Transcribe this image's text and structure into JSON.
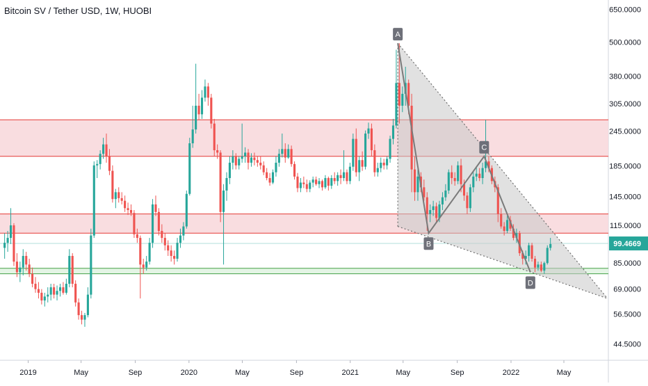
{
  "header": {
    "title": "Bitcoin SV / Tether USD, 1W, HUOBI"
  },
  "colors": {
    "up": "#26a69a",
    "down": "#ef5350",
    "resistance_fill": "#f8d7da",
    "resistance_line": "#e53935",
    "support_fill": "#dff3e1",
    "support_line": "#43a047",
    "pattern_fill": "#c8c8c8",
    "pattern_line": "#6e6e6e",
    "price_tag": "#26a69a",
    "label_bg": "#6e7079"
  },
  "chart_data": {
    "type": "candlestick",
    "scale": "log",
    "title": "Bitcoin SV / Tether USD, 1W, HUOBI",
    "y_ticks": [
      "650.0000",
      "500.0000",
      "380.0000",
      "305.0000",
      "245.0000",
      "185.0000",
      "145.0000",
      "115.0000",
      "85.0000",
      "69.0000",
      "56.5000",
      "44.5000"
    ],
    "y_tick_values": [
      650,
      500,
      380,
      305,
      245,
      185,
      145,
      115,
      85,
      69,
      56.5,
      44.5
    ],
    "ylim": [
      39,
      700
    ],
    "x_ticks": [
      {
        "label": "2019",
        "date": "2019-01-01"
      },
      {
        "label": "May",
        "date": "2019-05-01"
      },
      {
        "label": "Sep",
        "date": "2019-09-01"
      },
      {
        "label": "2020",
        "date": "2020-01-01"
      },
      {
        "label": "May",
        "date": "2020-05-01"
      },
      {
        "label": "Sep",
        "date": "2020-09-01"
      },
      {
        "label": "2021",
        "date": "2021-01-01"
      },
      {
        "label": "May",
        "date": "2021-05-01"
      },
      {
        "label": "Sep",
        "date": "2021-09-01"
      },
      {
        "label": "2022",
        "date": "2022-01-01"
      },
      {
        "label": "May",
        "date": "2022-05-01"
      }
    ],
    "xlim": [
      "2018-10-29",
      "2022-08-10"
    ],
    "current_price": {
      "value": 99.4669,
      "label": "99.4669"
    },
    "zones": [
      {
        "kind": "resistance",
        "low": 200,
        "high": 268
      },
      {
        "kind": "resistance",
        "low": 108,
        "high": 126
      },
      {
        "kind": "support",
        "low": 78,
        "high": 81.5
      }
    ],
    "pattern": {
      "points": [
        {
          "label": "A",
          "date": "2021-04-19",
          "price": 495
        },
        {
          "label": "B",
          "date": "2021-06-28",
          "price": 108
        },
        {
          "label": "C",
          "date": "2021-11-01",
          "price": 200
        },
        {
          "label": "D",
          "date": "2022-02-14",
          "price": 79
        }
      ],
      "wedge_upper_end": {
        "date": "2022-08-08",
        "price": 64
      },
      "wedge_lower_start": {
        "date": "2021-04-19",
        "price": 114
      }
    },
    "candles": [
      [
        "2018-11-05",
        96,
        108,
        88,
        100
      ],
      [
        "2018-11-12",
        100,
        110,
        93,
        104
      ],
      [
        "2018-11-19",
        104,
        132,
        99,
        115
      ],
      [
        "2018-11-26",
        115,
        117,
        83,
        86
      ],
      [
        "2018-12-03",
        86,
        92,
        76,
        79
      ],
      [
        "2018-12-10",
        79,
        86,
        73,
        82
      ],
      [
        "2018-12-17",
        82,
        95,
        77,
        90
      ],
      [
        "2018-12-24",
        90,
        93,
        80,
        84
      ],
      [
        "2018-12-31",
        84,
        88,
        76,
        78
      ],
      [
        "2019-01-07",
        78,
        82,
        70,
        72
      ],
      [
        "2019-01-14",
        72,
        76,
        67,
        69
      ],
      [
        "2019-01-21",
        69,
        73,
        64,
        67
      ],
      [
        "2019-01-28",
        67,
        69,
        61,
        63
      ],
      [
        "2019-02-04",
        63,
        67,
        60,
        65
      ],
      [
        "2019-02-11",
        65,
        70,
        62,
        66
      ],
      [
        "2019-02-18",
        66,
        72,
        63,
        70
      ],
      [
        "2019-02-25",
        70,
        72,
        64,
        66
      ],
      [
        "2019-03-04",
        66,
        71,
        63,
        68
      ],
      [
        "2019-03-11",
        68,
        72,
        65,
        70
      ],
      [
        "2019-03-18",
        70,
        73,
        66,
        67
      ],
      [
        "2019-03-25",
        67,
        75,
        66,
        72
      ],
      [
        "2019-04-01",
        72,
        95,
        70,
        90
      ],
      [
        "2019-04-08",
        90,
        92,
        70,
        72
      ],
      [
        "2019-04-15",
        72,
        74,
        60,
        62
      ],
      [
        "2019-04-22",
        62,
        64,
        54,
        56
      ],
      [
        "2019-04-29",
        56,
        58,
        52,
        54
      ],
      [
        "2019-05-06",
        54,
        57,
        51,
        56
      ],
      [
        "2019-05-13",
        56,
        70,
        55,
        66
      ],
      [
        "2019-05-20",
        66,
        112,
        64,
        106
      ],
      [
        "2019-05-27",
        106,
        192,
        104,
        186
      ],
      [
        "2019-06-03",
        186,
        194,
        168,
        188
      ],
      [
        "2019-06-10",
        188,
        210,
        180,
        204
      ],
      [
        "2019-06-17",
        204,
        232,
        196,
        220
      ],
      [
        "2019-06-24",
        220,
        240,
        190,
        200
      ],
      [
        "2019-07-01",
        200,
        212,
        172,
        178
      ],
      [
        "2019-07-08",
        178,
        186,
        138,
        142
      ],
      [
        "2019-07-15",
        142,
        154,
        132,
        150
      ],
      [
        "2019-07-22",
        150,
        156,
        138,
        143
      ],
      [
        "2019-07-29",
        143,
        150,
        136,
        140
      ],
      [
        "2019-08-05",
        140,
        146,
        128,
        132
      ],
      [
        "2019-08-12",
        132,
        138,
        125,
        130
      ],
      [
        "2019-08-19",
        130,
        136,
        124,
        127
      ],
      [
        "2019-08-26",
        127,
        130,
        104,
        107
      ],
      [
        "2019-09-02",
        107,
        112,
        100,
        104
      ],
      [
        "2019-09-09",
        104,
        106,
        64,
        84
      ],
      [
        "2019-09-16",
        84,
        88,
        78,
        82
      ],
      [
        "2019-09-23",
        82,
        90,
        80,
        86
      ],
      [
        "2019-09-30",
        86,
        104,
        84,
        100
      ],
      [
        "2019-10-07",
        100,
        142,
        96,
        136
      ],
      [
        "2019-10-14",
        136,
        146,
        124,
        128
      ],
      [
        "2019-10-21",
        128,
        132,
        106,
        110
      ],
      [
        "2019-10-28",
        110,
        116,
        100,
        104
      ],
      [
        "2019-11-04",
        104,
        108,
        94,
        98
      ],
      [
        "2019-11-11",
        98,
        102,
        90,
        94
      ],
      [
        "2019-11-18",
        94,
        98,
        86,
        90
      ],
      [
        "2019-11-25",
        90,
        94,
        84,
        88
      ],
      [
        "2019-12-02",
        88,
        104,
        86,
        100
      ],
      [
        "2019-12-09",
        100,
        112,
        96,
        106
      ],
      [
        "2019-12-16",
        106,
        118,
        102,
        114
      ],
      [
        "2019-12-23",
        114,
        152,
        112,
        148
      ],
      [
        "2019-12-30",
        148,
        232,
        146,
        222
      ],
      [
        "2020-01-06",
        222,
        300,
        214,
        248
      ],
      [
        "2020-01-13",
        248,
        420,
        240,
        300
      ],
      [
        "2020-01-20",
        300,
        330,
        268,
        280
      ],
      [
        "2020-01-27",
        280,
        340,
        270,
        320
      ],
      [
        "2020-02-03",
        320,
        370,
        310,
        350
      ],
      [
        "2020-02-10",
        350,
        360,
        300,
        320
      ],
      [
        "2020-02-17",
        320,
        330,
        250,
        260
      ],
      [
        "2020-02-24",
        260,
        270,
        200,
        210
      ],
      [
        "2020-03-02",
        210,
        220,
        196,
        206
      ],
      [
        "2020-03-09",
        206,
        210,
        118,
        128
      ],
      [
        "2020-03-16",
        128,
        160,
        84,
        152
      ],
      [
        "2020-03-23",
        152,
        176,
        140,
        168
      ],
      [
        "2020-03-30",
        168,
        200,
        160,
        190
      ],
      [
        "2020-04-06",
        190,
        210,
        180,
        200
      ],
      [
        "2020-04-13",
        200,
        205,
        180,
        186
      ],
      [
        "2020-04-20",
        186,
        200,
        180,
        196
      ],
      [
        "2020-04-27",
        196,
        260,
        190,
        200
      ],
      [
        "2020-05-04",
        200,
        215,
        190,
        206
      ],
      [
        "2020-05-11",
        206,
        212,
        180,
        190
      ],
      [
        "2020-05-18",
        190,
        205,
        184,
        198
      ],
      [
        "2020-05-25",
        198,
        206,
        186,
        194
      ],
      [
        "2020-06-01",
        194,
        200,
        184,
        190
      ],
      [
        "2020-06-08",
        190,
        200,
        180,
        186
      ],
      [
        "2020-06-15",
        186,
        192,
        172,
        176
      ],
      [
        "2020-06-22",
        176,
        182,
        165,
        168
      ],
      [
        "2020-06-29",
        168,
        175,
        158,
        162
      ],
      [
        "2020-07-06",
        162,
        180,
        160,
        176
      ],
      [
        "2020-07-13",
        176,
        200,
        170,
        190
      ],
      [
        "2020-07-20",
        190,
        212,
        184,
        204
      ],
      [
        "2020-07-27",
        204,
        240,
        198,
        212
      ],
      [
        "2020-08-03",
        212,
        222,
        190,
        198
      ],
      [
        "2020-08-10",
        198,
        220,
        196,
        212
      ],
      [
        "2020-08-17",
        212,
        218,
        184,
        188
      ],
      [
        "2020-08-24",
        188,
        192,
        166,
        170
      ],
      [
        "2020-08-31",
        170,
        175,
        150,
        155
      ],
      [
        "2020-09-07",
        155,
        168,
        150,
        162
      ],
      [
        "2020-09-14",
        162,
        170,
        155,
        160
      ],
      [
        "2020-09-21",
        160,
        166,
        150,
        154
      ],
      [
        "2020-09-28",
        154,
        165,
        150,
        162
      ],
      [
        "2020-10-05",
        162,
        170,
        156,
        166
      ],
      [
        "2020-10-12",
        166,
        170,
        158,
        160
      ],
      [
        "2020-10-19",
        160,
        168,
        155,
        164
      ],
      [
        "2020-10-26",
        164,
        166,
        152,
        156
      ],
      [
        "2020-11-02",
        156,
        172,
        154,
        168
      ],
      [
        "2020-11-09",
        168,
        170,
        152,
        158
      ],
      [
        "2020-11-16",
        158,
        172,
        154,
        168
      ],
      [
        "2020-11-23",
        168,
        176,
        160,
        164
      ],
      [
        "2020-11-30",
        164,
        176,
        158,
        172
      ],
      [
        "2020-12-07",
        172,
        180,
        160,
        168
      ],
      [
        "2020-12-14",
        168,
        210,
        164,
        176
      ],
      [
        "2020-12-21",
        176,
        180,
        160,
        164
      ],
      [
        "2020-12-28",
        164,
        190,
        160,
        184
      ],
      [
        "2021-01-04",
        184,
        240,
        178,
        230
      ],
      [
        "2021-01-11",
        230,
        250,
        170,
        176
      ],
      [
        "2021-01-18",
        176,
        200,
        164,
        194
      ],
      [
        "2021-01-25",
        194,
        208,
        178,
        184
      ],
      [
        "2021-02-01",
        184,
        246,
        180,
        240
      ],
      [
        "2021-02-08",
        240,
        262,
        230,
        250
      ],
      [
        "2021-02-15",
        250,
        260,
        200,
        210
      ],
      [
        "2021-02-22",
        210,
        220,
        170,
        176
      ],
      [
        "2021-03-01",
        176,
        190,
        170,
        182
      ],
      [
        "2021-03-08",
        182,
        198,
        176,
        190
      ],
      [
        "2021-03-15",
        190,
        196,
        180,
        186
      ],
      [
        "2021-03-22",
        186,
        200,
        180,
        196
      ],
      [
        "2021-03-29",
        196,
        236,
        190,
        230
      ],
      [
        "2021-04-05",
        230,
        270,
        220,
        256
      ],
      [
        "2021-04-12",
        256,
        470,
        250,
        360
      ],
      [
        "2021-04-19",
        360,
        495,
        260,
        300
      ],
      [
        "2021-04-26",
        300,
        350,
        285,
        330
      ],
      [
        "2021-05-03",
        330,
        410,
        300,
        360
      ],
      [
        "2021-05-10",
        360,
        370,
        280,
        300
      ],
      [
        "2021-05-17",
        300,
        330,
        150,
        180
      ],
      [
        "2021-05-24",
        180,
        200,
        140,
        150
      ],
      [
        "2021-05-31",
        150,
        180,
        140,
        170
      ],
      [
        "2021-06-07",
        170,
        176,
        150,
        156
      ],
      [
        "2021-06-14",
        156,
        166,
        140,
        144
      ],
      [
        "2021-06-21",
        144,
        150,
        110,
        126
      ],
      [
        "2021-06-28",
        126,
        136,
        118,
        130
      ],
      [
        "2021-07-05",
        130,
        140,
        124,
        134
      ],
      [
        "2021-07-12",
        134,
        138,
        118,
        122
      ],
      [
        "2021-07-19",
        122,
        140,
        118,
        136
      ],
      [
        "2021-07-26",
        136,
        150,
        130,
        144
      ],
      [
        "2021-08-02",
        144,
        160,
        140,
        152
      ],
      [
        "2021-08-09",
        152,
        180,
        148,
        176
      ],
      [
        "2021-08-16",
        176,
        186,
        160,
        168
      ],
      [
        "2021-08-23",
        168,
        176,
        158,
        164
      ],
      [
        "2021-08-30",
        164,
        192,
        160,
        186
      ],
      [
        "2021-09-06",
        186,
        196,
        150,
        160
      ],
      [
        "2021-09-13",
        160,
        166,
        140,
        146
      ],
      [
        "2021-09-20",
        146,
        150,
        126,
        132
      ],
      [
        "2021-09-27",
        132,
        160,
        128,
        156
      ],
      [
        "2021-10-04",
        156,
        176,
        150,
        170
      ],
      [
        "2021-10-11",
        170,
        184,
        164,
        174
      ],
      [
        "2021-10-18",
        174,
        182,
        164,
        168
      ],
      [
        "2021-10-25",
        168,
        190,
        160,
        182
      ],
      [
        "2021-11-01",
        182,
        268,
        176,
        192
      ],
      [
        "2021-11-08",
        192,
        200,
        176,
        182
      ],
      [
        "2021-11-15",
        182,
        186,
        160,
        164
      ],
      [
        "2021-11-22",
        164,
        170,
        150,
        156
      ],
      [
        "2021-11-29",
        156,
        160,
        118,
        126
      ],
      [
        "2021-12-06",
        126,
        132,
        112,
        114
      ],
      [
        "2021-12-13",
        114,
        118,
        106,
        110
      ],
      [
        "2021-12-20",
        110,
        124,
        108,
        120
      ],
      [
        "2021-12-27",
        120,
        124,
        110,
        112
      ],
      [
        "2022-01-03",
        112,
        116,
        102,
        104
      ],
      [
        "2022-01-10",
        104,
        112,
        100,
        108
      ],
      [
        "2022-01-17",
        108,
        110,
        90,
        92
      ],
      [
        "2022-01-24",
        92,
        94,
        84,
        88
      ],
      [
        "2022-01-31",
        88,
        94,
        84,
        90
      ],
      [
        "2022-02-07",
        90,
        100,
        86,
        98
      ],
      [
        "2022-02-14",
        98,
        100,
        86,
        88
      ],
      [
        "2022-02-21",
        88,
        90,
        79,
        82
      ],
      [
        "2022-02-28",
        82,
        86,
        80,
        84
      ],
      [
        "2022-03-07",
        84,
        86,
        79,
        80
      ],
      [
        "2022-03-14",
        80,
        86,
        78,
        85
      ],
      [
        "2022-03-21",
        85,
        98,
        84,
        96
      ],
      [
        "2022-03-28",
        96,
        104,
        94,
        99
      ]
    ]
  }
}
